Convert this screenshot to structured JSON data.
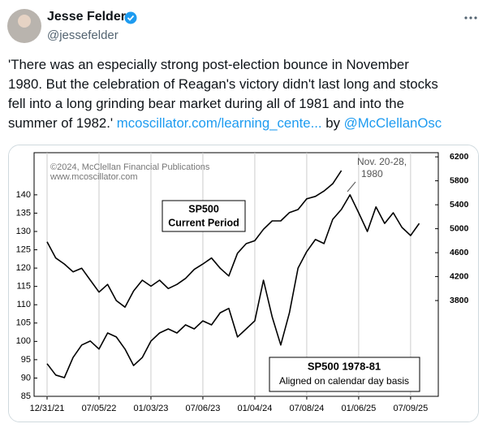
{
  "tweet": {
    "name": "Jesse Felder",
    "handle": "@jessefelder",
    "body_lines": [
      "'There was an especially strong post-election bounce in November",
      "1980. But the celebration of Reagan's victory didn't last long and stocks",
      "fell into a long grinding bear market during all of 1981 and into the",
      "summer of 1982.'"
    ],
    "link": "mcoscillator.com/learning_cente...",
    "by": "by",
    "mention": "@McClellanOsc"
  },
  "chart_data": {
    "type": "line",
    "annotations": [
      "©2024, McClellan Financial Publications",
      "www.mcoscillator.com",
      "SP500",
      "Current Period",
      "Nov. 20-28,",
      "1980",
      "SP500 1978-81",
      "Aligned on calendar day basis"
    ],
    "xlim": [
      -1.5,
      45.2
    ],
    "xticks": [
      {
        "value": 0,
        "label": "12/31/21"
      },
      {
        "value": 6,
        "label": "07/05/22"
      },
      {
        "value": 12,
        "label": "01/03/23"
      },
      {
        "value": 18,
        "label": "07/06/23"
      },
      {
        "value": 24,
        "label": "01/04/24"
      },
      {
        "value": 30,
        "label": "07/08/24"
      },
      {
        "value": 36,
        "label": "01/06/25"
      },
      {
        "value": 42,
        "label": "07/09/25"
      }
    ],
    "ylim": [
      85,
      151.5
    ],
    "yticks": [
      85,
      90,
      95,
      100,
      105,
      110,
      115,
      120,
      125,
      130,
      135,
      140
    ],
    "y2lim": [
      2200,
      6270
    ],
    "y2ticks": [
      3800,
      4200,
      4600,
      5000,
      5400,
      5800,
      6200
    ],
    "grid": true,
    "series": [
      {
        "color": "#000000",
        "axis": "y2",
        "x": [
          0,
          1,
          2,
          3,
          4,
          5,
          6,
          7,
          8,
          9,
          10,
          11,
          12,
          13,
          14,
          15,
          16,
          17,
          18,
          19,
          20,
          21,
          22,
          23,
          24,
          25,
          26,
          27,
          28,
          29,
          30,
          31,
          32,
          33,
          34
        ],
        "values": [
          4780,
          4510,
          4410,
          4280,
          4340,
          4140,
          3940,
          4070,
          3800,
          3690,
          3960,
          4140,
          4040,
          4140,
          4000,
          4070,
          4170,
          4320,
          4410,
          4510,
          4340,
          4210,
          4590,
          4750,
          4800,
          4990,
          5130,
          5130,
          5270,
          5320,
          5500,
          5540,
          5630,
          5750,
          5970
        ]
      },
      {
        "color": "#000000",
        "axis": "y",
        "x": [
          0,
          1,
          2,
          3,
          4,
          5,
          6,
          7,
          8,
          9,
          10,
          11,
          12,
          13,
          14,
          15,
          16,
          17,
          18,
          19,
          20,
          21,
          22,
          23,
          24,
          25,
          26,
          27,
          28,
          29,
          30,
          31,
          32,
          33,
          34,
          35,
          36,
          37,
          38,
          39,
          40,
          41,
          42,
          43
        ],
        "values": [
          93.9,
          90.8,
          90.1,
          95.6,
          99.0,
          100.1,
          97.9,
          102.3,
          101.2,
          97.9,
          93.4,
          95.6,
          100.1,
          102.3,
          103.4,
          102.3,
          104.5,
          103.4,
          105.6,
          104.5,
          107.8,
          109.0,
          101.2,
          103.4,
          105.6,
          116.7,
          106.7,
          99.0,
          107.8,
          120.0,
          124.5,
          127.8,
          126.7,
          133.3,
          136.0,
          140.0,
          135.1,
          130.0,
          136.7,
          132.2,
          135.1,
          131.1,
          128.9,
          132.2
        ]
      }
    ]
  }
}
